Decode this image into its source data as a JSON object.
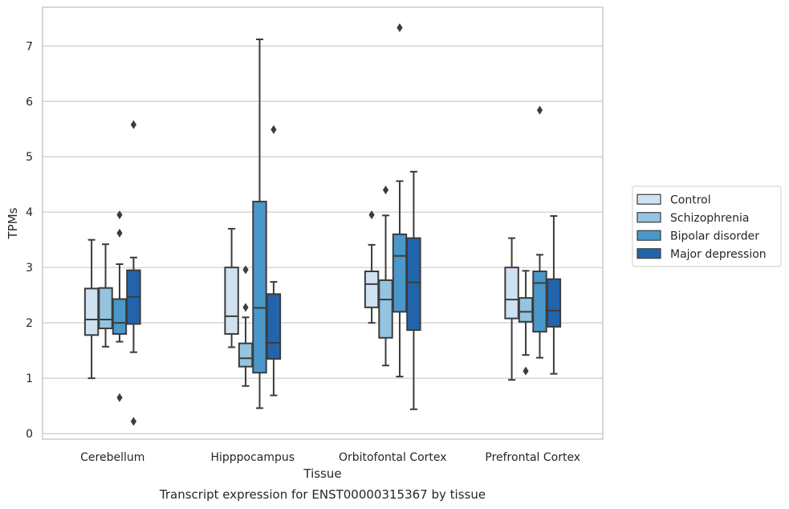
{
  "chart_data": {
    "type": "box",
    "title": "",
    "caption": "Transcript expression for ENST00000315367 by tissue",
    "xlabel": "Tissue",
    "ylabel": "TPMs",
    "ylim": [
      -0.1,
      7.7
    ],
    "yticks": [
      0,
      1,
      2,
      3,
      4,
      5,
      6,
      7
    ],
    "grid": "horizontal",
    "legend_position": "right",
    "categories": [
      "Cerebellum",
      "Hipppocampus",
      "Orbitofontal Cortex",
      "Prefrontal Cortex"
    ],
    "series": [
      {
        "name": "Control",
        "color": "#d0e1f2",
        "boxes": [
          {
            "whisker_low": 1.0,
            "q1": 1.78,
            "median": 2.06,
            "q3": 2.62,
            "whisker_high": 3.5,
            "outliers": []
          },
          {
            "whisker_low": 1.56,
            "q1": 1.8,
            "median": 2.12,
            "q3": 3.0,
            "whisker_high": 3.7,
            "outliers": []
          },
          {
            "whisker_low": 2.0,
            "q1": 2.28,
            "median": 2.7,
            "q3": 2.93,
            "whisker_high": 3.41,
            "outliers": [
              3.95
            ]
          },
          {
            "whisker_low": 0.97,
            "q1": 2.08,
            "median": 2.42,
            "q3": 3.0,
            "whisker_high": 3.53,
            "outliers": []
          }
        ]
      },
      {
        "name": "Schizophrenia",
        "color": "#94c4df",
        "boxes": [
          {
            "whisker_low": 1.57,
            "q1": 1.9,
            "median": 2.06,
            "q3": 2.63,
            "whisker_high": 3.42,
            "outliers": []
          },
          {
            "whisker_low": 0.86,
            "q1": 1.21,
            "median": 1.36,
            "q3": 1.63,
            "whisker_high": 2.1,
            "outliers": [
              2.28,
              2.96
            ]
          },
          {
            "whisker_low": 1.23,
            "q1": 1.73,
            "median": 2.42,
            "q3": 2.77,
            "whisker_high": 3.94,
            "outliers": [
              4.4
            ]
          },
          {
            "whisker_low": 1.42,
            "q1": 2.02,
            "median": 2.2,
            "q3": 2.45,
            "whisker_high": 2.94,
            "outliers": [
              1.13
            ]
          }
        ]
      },
      {
        "name": "Bipolar disorder",
        "color": "#4a98c9",
        "boxes": [
          {
            "whisker_low": 1.66,
            "q1": 1.8,
            "median": 2.0,
            "q3": 2.43,
            "whisker_high": 3.06,
            "outliers": [
              3.95,
              3.62,
              0.65
            ]
          },
          {
            "whisker_low": 0.46,
            "q1": 1.1,
            "median": 2.27,
            "q3": 4.19,
            "whisker_high": 7.12,
            "outliers": []
          },
          {
            "whisker_low": 1.03,
            "q1": 2.2,
            "median": 3.21,
            "q3": 3.6,
            "whisker_high": 4.56,
            "outliers": [
              7.33
            ]
          },
          {
            "whisker_low": 1.37,
            "q1": 1.84,
            "median": 2.72,
            "q3": 2.93,
            "whisker_high": 3.23,
            "outliers": [
              5.84
            ]
          }
        ]
      },
      {
        "name": "Major depression",
        "color": "#2164ab",
        "boxes": [
          {
            "whisker_low": 1.47,
            "q1": 1.98,
            "median": 2.47,
            "q3": 2.95,
            "whisker_high": 3.18,
            "outliers": [
              5.58,
              0.22
            ]
          },
          {
            "whisker_low": 0.69,
            "q1": 1.35,
            "median": 1.64,
            "q3": 2.52,
            "whisker_high": 2.74,
            "outliers": [
              5.49
            ]
          },
          {
            "whisker_low": 0.44,
            "q1": 1.87,
            "median": 2.73,
            "q3": 3.53,
            "whisker_high": 4.73,
            "outliers": []
          },
          {
            "whisker_low": 1.08,
            "q1": 1.93,
            "median": 2.22,
            "q3": 2.79,
            "whisker_high": 3.93,
            "outliers": []
          }
        ]
      }
    ]
  }
}
